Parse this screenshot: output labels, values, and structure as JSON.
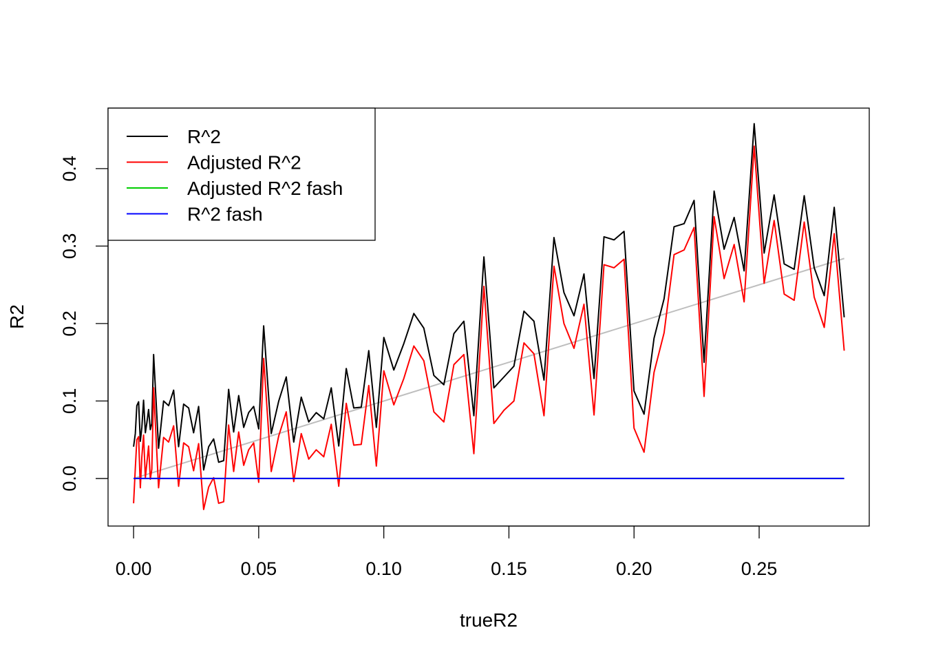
{
  "chart_data": {
    "type": "line",
    "title": "",
    "xlabel": "trueR2",
    "ylabel": "R2",
    "xlim": [
      -0.0102,
      0.294
    ],
    "ylim": [
      -0.0614,
      0.4781
    ],
    "x_ticks": [
      0.0,
      0.05,
      0.1,
      0.15,
      0.2,
      0.25
    ],
    "x_tick_labels": [
      "0.00",
      "0.05",
      "0.10",
      "0.15",
      "0.20",
      "0.25"
    ],
    "y_ticks": [
      0.0,
      0.1,
      0.2,
      0.3,
      0.4
    ],
    "y_tick_labels": [
      "0.0",
      "0.1",
      "0.2",
      "0.3",
      "0.4"
    ],
    "grid": false,
    "legend_position": "top-left",
    "x": [
      0.0,
      0.0007,
      0.0013,
      0.002,
      0.0027,
      0.0033,
      0.004,
      0.0047,
      0.0053,
      0.006,
      0.0067,
      0.0073,
      0.008,
      0.01,
      0.012,
      0.014,
      0.016,
      0.018,
      0.02,
      0.022,
      0.024,
      0.026,
      0.028,
      0.03,
      0.032,
      0.034,
      0.036,
      0.038,
      0.04,
      0.042,
      0.044,
      0.046,
      0.048,
      0.05,
      0.052,
      0.055,
      0.058,
      0.061,
      0.064,
      0.067,
      0.07,
      0.073,
      0.076,
      0.079,
      0.082,
      0.085,
      0.088,
      0.091,
      0.094,
      0.097,
      0.1,
      0.104,
      0.108,
      0.112,
      0.116,
      0.12,
      0.124,
      0.128,
      0.132,
      0.136,
      0.14,
      0.144,
      0.148,
      0.152,
      0.156,
      0.16,
      0.164,
      0.168,
      0.172,
      0.176,
      0.18,
      0.184,
      0.188,
      0.192,
      0.196,
      0.2,
      0.204,
      0.208,
      0.212,
      0.216,
      0.22,
      0.224,
      0.228,
      0.232,
      0.236,
      0.24,
      0.244,
      0.248,
      0.252,
      0.256,
      0.26,
      0.264,
      0.268,
      0.272,
      0.276,
      0.28,
      0.284
    ],
    "series": [
      {
        "name": "R^2",
        "color": "#000000",
        "values": [
          0.041,
          0.058,
          0.094,
          0.099,
          0.048,
          0.066,
          0.101,
          0.059,
          0.072,
          0.089,
          0.063,
          0.071,
          0.16,
          0.039,
          0.1,
          0.094,
          0.114,
          0.041,
          0.096,
          0.091,
          0.059,
          0.093,
          0.011,
          0.041,
          0.051,
          0.021,
          0.023,
          0.115,
          0.06,
          0.107,
          0.066,
          0.085,
          0.093,
          0.064,
          0.197,
          0.058,
          0.1,
          0.131,
          0.047,
          0.105,
          0.073,
          0.085,
          0.077,
          0.117,
          0.042,
          0.142,
          0.091,
          0.092,
          0.165,
          0.066,
          0.182,
          0.14,
          0.174,
          0.213,
          0.194,
          0.133,
          0.121,
          0.187,
          0.203,
          0.081,
          0.286,
          0.117,
          0.131,
          0.145,
          0.216,
          0.203,
          0.127,
          0.311,
          0.24,
          0.21,
          0.264,
          0.129,
          0.312,
          0.308,
          0.319,
          0.113,
          0.083,
          0.181,
          0.232,
          0.325,
          0.329,
          0.359,
          0.15,
          0.371,
          0.296,
          0.337,
          0.268,
          0.458,
          0.291,
          0.366,
          0.277,
          0.27,
          0.365,
          0.272,
          0.236,
          0.35,
          0.208
        ]
      },
      {
        "name": "Adjusted R^2",
        "color": "#ff0000",
        "values": [
          -0.032,
          0.013,
          0.05,
          0.054,
          -0.012,
          0.028,
          0.056,
          0.001,
          0.02,
          0.042,
          -0.001,
          0.012,
          0.117,
          -0.012,
          0.053,
          0.047,
          0.068,
          -0.01,
          0.046,
          0.041,
          0.01,
          0.045,
          -0.04,
          -0.011,
          0.001,
          -0.032,
          -0.03,
          0.069,
          0.009,
          0.06,
          0.017,
          0.037,
          0.046,
          -0.005,
          0.155,
          0.009,
          0.055,
          0.086,
          -0.004,
          0.058,
          0.025,
          0.037,
          0.028,
          0.07,
          -0.01,
          0.097,
          0.043,
          0.044,
          0.12,
          0.016,
          0.139,
          0.095,
          0.129,
          0.171,
          0.152,
          0.086,
          0.073,
          0.147,
          0.16,
          0.032,
          0.248,
          0.071,
          0.088,
          0.1,
          0.175,
          0.161,
          0.081,
          0.274,
          0.2,
          0.168,
          0.225,
          0.082,
          0.276,
          0.272,
          0.283,
          0.065,
          0.034,
          0.137,
          0.188,
          0.289,
          0.295,
          0.324,
          0.106,
          0.338,
          0.258,
          0.302,
          0.228,
          0.429,
          0.252,
          0.333,
          0.238,
          0.23,
          0.331,
          0.234,
          0.195,
          0.316,
          0.165
        ]
      },
      {
        "name": "Adjusted R^2 fash",
        "color": "#00cd00",
        "values": [
          0,
          0,
          0,
          0,
          0,
          0,
          0,
          0,
          0,
          0,
          0,
          0,
          0,
          0,
          0,
          0,
          0,
          0,
          0,
          0,
          0,
          0,
          0,
          0,
          0,
          0,
          0,
          0,
          0,
          0,
          0,
          0,
          0,
          0,
          0,
          0,
          0,
          0,
          0,
          0,
          0,
          0,
          0,
          0,
          0,
          0,
          0,
          0,
          0,
          0,
          0,
          0,
          0,
          0,
          0,
          0,
          0,
          0,
          0,
          0,
          0,
          0,
          0,
          0,
          0,
          0,
          0,
          0,
          0,
          0,
          0,
          0,
          0,
          0,
          0,
          0,
          0,
          0,
          0,
          0,
          0,
          0,
          0,
          0,
          0,
          0,
          0,
          0,
          0,
          0,
          0,
          0,
          0,
          0,
          0,
          0,
          0
        ]
      },
      {
        "name": "R^2 fash",
        "color": "#0000ff",
        "values": [
          0,
          0,
          0,
          0,
          0,
          0,
          0,
          0,
          0,
          0,
          0,
          0,
          0,
          0,
          0,
          0,
          0,
          0,
          0,
          0,
          0,
          0,
          0,
          0,
          0,
          0,
          0,
          0,
          0,
          0,
          0,
          0,
          0,
          0,
          0,
          0,
          0,
          0,
          0,
          0,
          0,
          0,
          0,
          0,
          0,
          0,
          0,
          0,
          0,
          0,
          0,
          0,
          0,
          0,
          0,
          0,
          0,
          0,
          0,
          0,
          0,
          0,
          0,
          0,
          0,
          0,
          0,
          0,
          0,
          0,
          0,
          0,
          0,
          0,
          0,
          0,
          0,
          0,
          0,
          0,
          0,
          0,
          0,
          0,
          0,
          0,
          0,
          0,
          0,
          0,
          0,
          0,
          0,
          0,
          0,
          0,
          0
        ]
      }
    ],
    "reference_line": {
      "name": "y = x",
      "color": "#bebebe",
      "x": [
        0.0,
        0.284
      ],
      "y": [
        0.0,
        0.284
      ]
    }
  }
}
